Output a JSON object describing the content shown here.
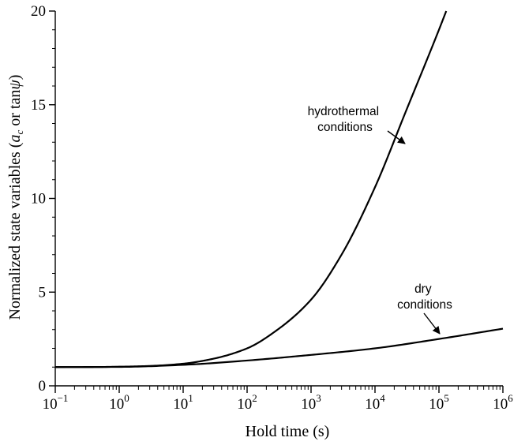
{
  "chart_data": {
    "type": "line",
    "x_scale": "log",
    "xlabel": "Hold time (s)",
    "ylabel_main": "Normalized state variables (",
    "ylabel_a": "a",
    "ylabel_sub": "c",
    "ylabel_or": " or tan",
    "ylabel_psi": "ψ",
    "ylabel_close": ")",
    "xlim": [
      0.1,
      1000000
    ],
    "ylim": [
      0,
      20
    ],
    "x_ticks": [
      {
        "base": "10",
        "exp": "−1"
      },
      {
        "base": "10",
        "exp": "0"
      },
      {
        "base": "10",
        "exp": "1"
      },
      {
        "base": "10",
        "exp": "2"
      },
      {
        "base": "10",
        "exp": "3"
      },
      {
        "base": "10",
        "exp": "4"
      },
      {
        "base": "10",
        "exp": "5"
      },
      {
        "base": "10",
        "exp": "6"
      }
    ],
    "y_ticks": [
      "0",
      "5",
      "10",
      "15",
      "20"
    ],
    "grid": false,
    "series": [
      {
        "label_lines": [
          "hydrothermal",
          "conditions"
        ],
        "x": [
          0.1,
          0.3,
          1,
          3,
          10,
          30,
          100,
          300,
          1000,
          3000,
          10000,
          30000,
          100000,
          130000
        ],
        "y": [
          1.0,
          1.0,
          1.02,
          1.06,
          1.18,
          1.45,
          2.0,
          3.0,
          4.6,
          7.0,
          10.6,
          14.6,
          19.0,
          20.0
        ]
      },
      {
        "label_lines": [
          "dry",
          "conditions"
        ],
        "x": [
          0.1,
          1,
          10,
          100,
          1000,
          10000,
          100000,
          1000000
        ],
        "y": [
          1.0,
          1.01,
          1.12,
          1.35,
          1.65,
          2.0,
          2.5,
          3.05
        ]
      }
    ]
  }
}
